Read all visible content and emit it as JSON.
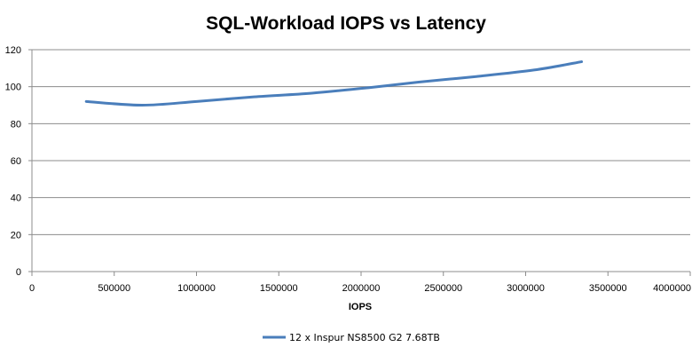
{
  "chart_data": {
    "type": "line",
    "title": "SQL-Workload IOPS vs Latency",
    "xlabel": "IOPS",
    "ylabel": "",
    "xlim": [
      0,
      4000000
    ],
    "ylim": [
      0,
      120
    ],
    "x_ticks": [
      "0",
      "500000",
      "1000000",
      "1500000",
      "2000000",
      "2500000",
      "3000000",
      "3500000",
      "4000000"
    ],
    "y_ticks": [
      "0",
      "20",
      "40",
      "60",
      "80",
      "100",
      "120"
    ],
    "grid": "horizontal",
    "legend_position": "bottom",
    "series": [
      {
        "name": "12 x Inspur NS8500 G2 7.68TB",
        "color": "#4a7ebb",
        "x": [
          330000,
          670000,
          1000000,
          1350000,
          1700000,
          2050000,
          2350000,
          2700000,
          3050000,
          3340000
        ],
        "y": [
          92,
          90,
          92,
          94.5,
          96.5,
          99.5,
          102.5,
          105.5,
          109,
          113.5
        ]
      }
    ]
  }
}
